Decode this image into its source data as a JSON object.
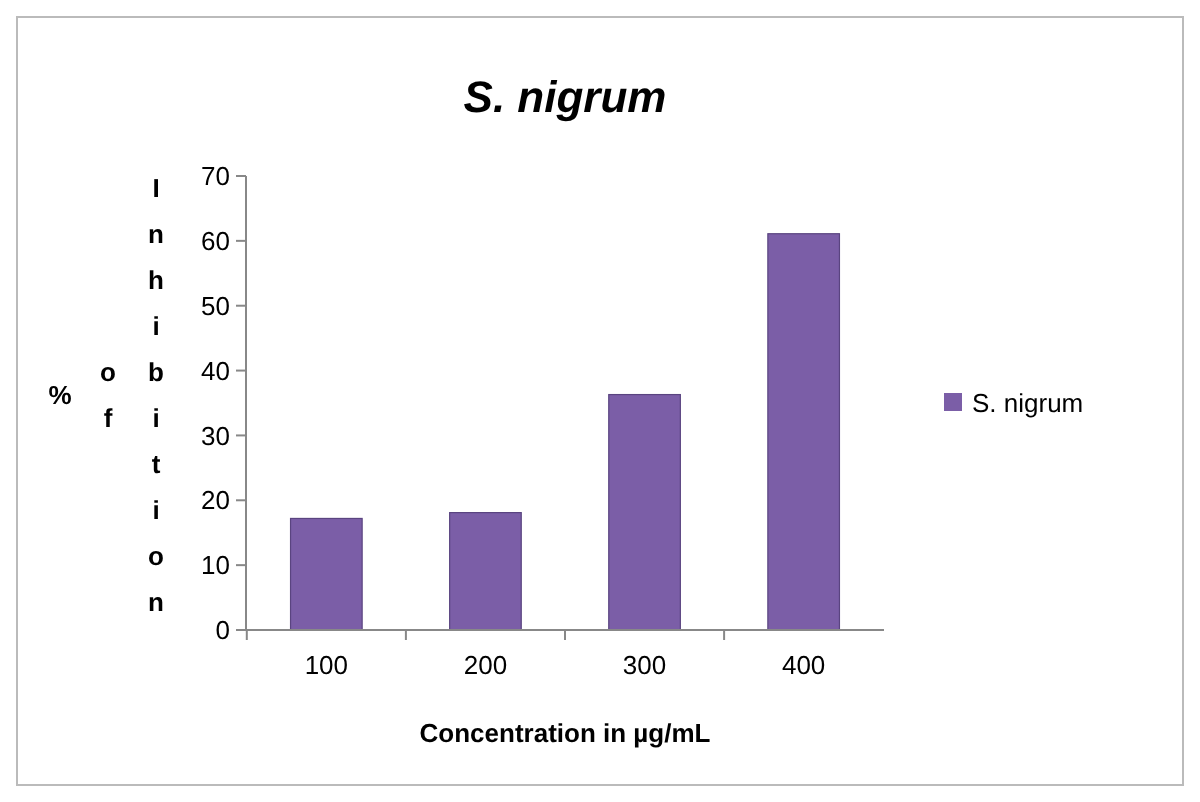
{
  "chart_data": {
    "type": "bar",
    "title": "S. nigrum",
    "xlabel": "Concentration in µg/mL",
    "ylabel": "% of Inhibition",
    "categories": [
      "100",
      "200",
      "300",
      "400"
    ],
    "series": [
      {
        "name": "S. nigrum",
        "color": "#7b5ea7",
        "values": [
          17.2,
          18.1,
          36.3,
          61.1
        ]
      }
    ],
    "ylim": [
      0,
      70
    ],
    "yticks": [
      0,
      10,
      20,
      30,
      40,
      50,
      60,
      70
    ],
    "legend": "right"
  }
}
